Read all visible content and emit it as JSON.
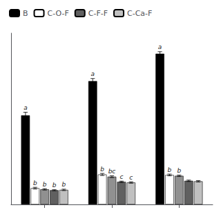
{
  "chart_data": {
    "type": "bar",
    "categories": [
      null,
      null,
      null
    ],
    "series": [
      {
        "name": "B",
        "color": "black",
        "values": [
          0.52,
          0.72,
          0.88
        ],
        "errors": [
          0.018,
          0.015,
          0.012
        ],
        "annotations": [
          "a",
          "a",
          "a"
        ]
      },
      {
        "name": "C-O-F",
        "color": "white",
        "values": [
          0.095,
          0.175,
          0.172
        ],
        "errors": [
          0.005,
          0.006,
          0.005
        ],
        "annotations": [
          "b",
          "b",
          "b"
        ]
      },
      {
        "color": "#909090",
        "values": [
          0.088,
          0.162,
          0.167
        ],
        "errors": [
          0.004,
          0.005,
          0.004
        ],
        "annotations": [
          "b",
          "bc",
          "b"
        ]
      },
      {
        "name": "C-F-F",
        "color": "#606060",
        "values": [
          0.083,
          0.132,
          0.138
        ],
        "errors": [
          0.003,
          0.004,
          0.004
        ],
        "annotations": [
          "b",
          "c",
          null
        ]
      },
      {
        "name": "C-Ca-F",
        "color": "#c0c0c0",
        "values": [
          0.085,
          0.128,
          0.135
        ],
        "errors": [
          0.004,
          0.004,
          0.004
        ],
        "annotations": [
          "b",
          "c",
          null
        ]
      }
    ],
    "ylim": [
      0,
      1.0
    ],
    "grid": false,
    "legend": "top-left",
    "tick_labels": false
  }
}
